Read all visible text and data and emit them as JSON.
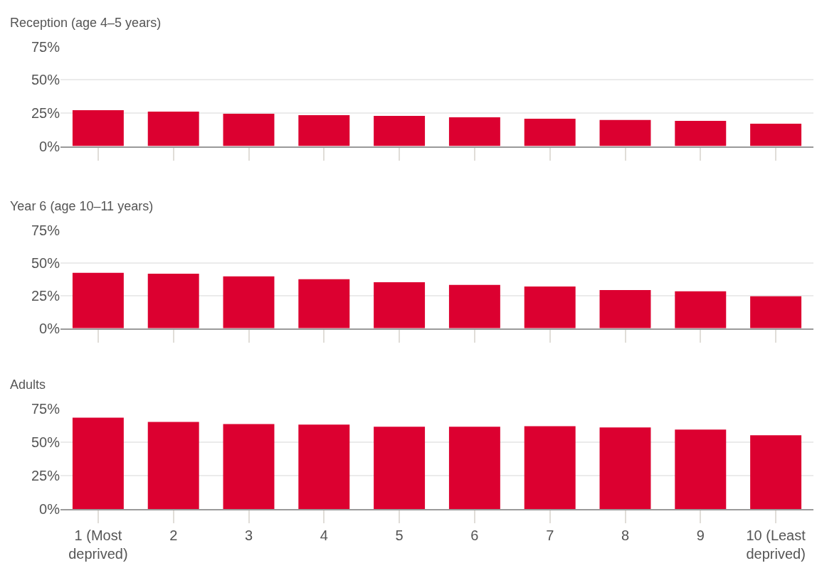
{
  "chart_data": [
    {
      "type": "bar",
      "title": "Reception (age 4–5 years)",
      "categories": [
        null,
        null,
        null,
        null,
        null,
        null,
        null,
        null,
        null,
        null
      ],
      "values": [
        27.1,
        26,
        24.5,
        23.4,
        22.9,
        21.8,
        20.7,
        19.7,
        19.1,
        17
      ],
      "color": "#dc0030",
      "ylim": [
        0,
        75
      ],
      "yticks": [
        {
          "value": 0,
          "label": "0%"
        },
        {
          "value": 25,
          "label": "25%"
        },
        {
          "value": 50,
          "label": "50%"
        },
        {
          "value": 75,
          "label": "75%"
        }
      ],
      "grid": "y",
      "tick_labels": "y"
    },
    {
      "type": "bar",
      "title": "Year 6 (age 10–11 years)",
      "categories": [
        null,
        null,
        null,
        null,
        null,
        null,
        null,
        null,
        null,
        null
      ],
      "values": [
        42.4,
        41.8,
        39.7,
        37.5,
        35.3,
        33.2,
        32,
        29.3,
        28.3,
        24.5
      ],
      "color": "#dc0030",
      "ylim": [
        0,
        75
      ],
      "yticks": [
        {
          "value": 0,
          "label": "0%"
        },
        {
          "value": 25,
          "label": "25%"
        },
        {
          "value": 50,
          "label": "50%"
        },
        {
          "value": 75,
          "label": "75%"
        }
      ],
      "grid": "y",
      "tick_labels": "y"
    },
    {
      "type": "bar",
      "title": "Adults",
      "categories": [
        "1 (Most deprived)",
        "2",
        "3",
        "4",
        "5",
        "6",
        "7",
        "8",
        "9",
        "10 (Least deprived)"
      ],
      "values": [
        68.6,
        65.4,
        63.8,
        63.3,
        61.7,
        61.7,
        62.2,
        61.2,
        59.6,
        55.3
      ],
      "color": "#dc0030",
      "ylim": [
        0,
        75
      ],
      "yticks": [
        {
          "value": 0,
          "label": "0%"
        },
        {
          "value": 25,
          "label": "25%"
        },
        {
          "value": 50,
          "label": "50%"
        },
        {
          "value": 75,
          "label": "75%"
        }
      ],
      "grid": "y"
    }
  ]
}
